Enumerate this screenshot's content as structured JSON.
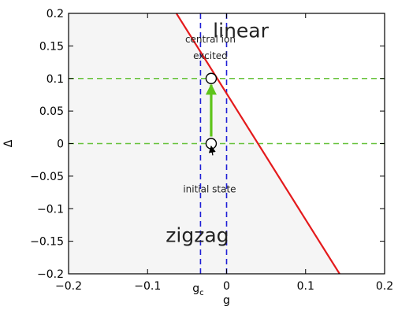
{
  "chart_data": {
    "type": "line",
    "xlabel": "g",
    "ylabel": "Δ",
    "xlim": [
      -0.2,
      0.2
    ],
    "ylim": [
      -0.2,
      0.2
    ],
    "xticks": [
      -0.2,
      -0.1,
      0,
      0.1,
      0.2
    ],
    "xtick_labels": [
      "−0.2",
      "−0.1",
      "0",
      "0.1",
      "0.2"
    ],
    "yticks": [
      -0.2,
      -0.15,
      -0.1,
      -0.05,
      0,
      0.05,
      0.1,
      0.15,
      0.2
    ],
    "ytick_labels": [
      "−0.2",
      "−0.15",
      "−0.1",
      "−0.05",
      "0",
      "0.05",
      "0.1",
      "0.15",
      "0.2"
    ],
    "grid": false,
    "series": [
      {
        "role": "phase boundary",
        "color": "#e41a1c",
        "x": [
          -0.0635,
          0.143
        ],
        "y": [
          0.2,
          -0.2
        ]
      }
    ],
    "reference_lines": [
      {
        "orientation": "vertical",
        "x": -0.033,
        "color": "#1f1fd6",
        "style": "dashed"
      },
      {
        "orientation": "vertical",
        "x": 0,
        "color": "#1f1fd6",
        "style": "dashed"
      },
      {
        "orientation": "horizontal",
        "y": 0.1,
        "color": "#66c23a",
        "style": "dashed"
      },
      {
        "orientation": "horizontal",
        "y": 0,
        "color": "#66c23a",
        "style": "dashed"
      }
    ],
    "extra_tick": {
      "x": -0.033,
      "label": "g",
      "subscript": "c"
    },
    "points": [
      {
        "x": -0.0195,
        "y": 0.1
      },
      {
        "x": -0.0195,
        "y": 0
      }
    ],
    "transition_arrow": {
      "from": [
        -0.0195,
        0
      ],
      "to": [
        -0.0195,
        0.1
      ],
      "color": "#5ec41a"
    },
    "regions": [
      {
        "label": "linear",
        "x": 0.018,
        "y": 0.163
      },
      {
        "label": "zigzag",
        "x": -0.037,
        "y": -0.151
      }
    ],
    "annotations": [
      {
        "lines": [
          "central ion",
          "excited"
        ],
        "x": -0.0205,
        "y": 0.155,
        "arrow_to": null
      },
      {
        "lines": [
          "initial state"
        ],
        "x": -0.0215,
        "y": -0.075,
        "arrow_from": [
          -0.0175,
          -0.018
        ],
        "arrow_to": [
          -0.0195,
          -0.004
        ]
      }
    ]
  }
}
